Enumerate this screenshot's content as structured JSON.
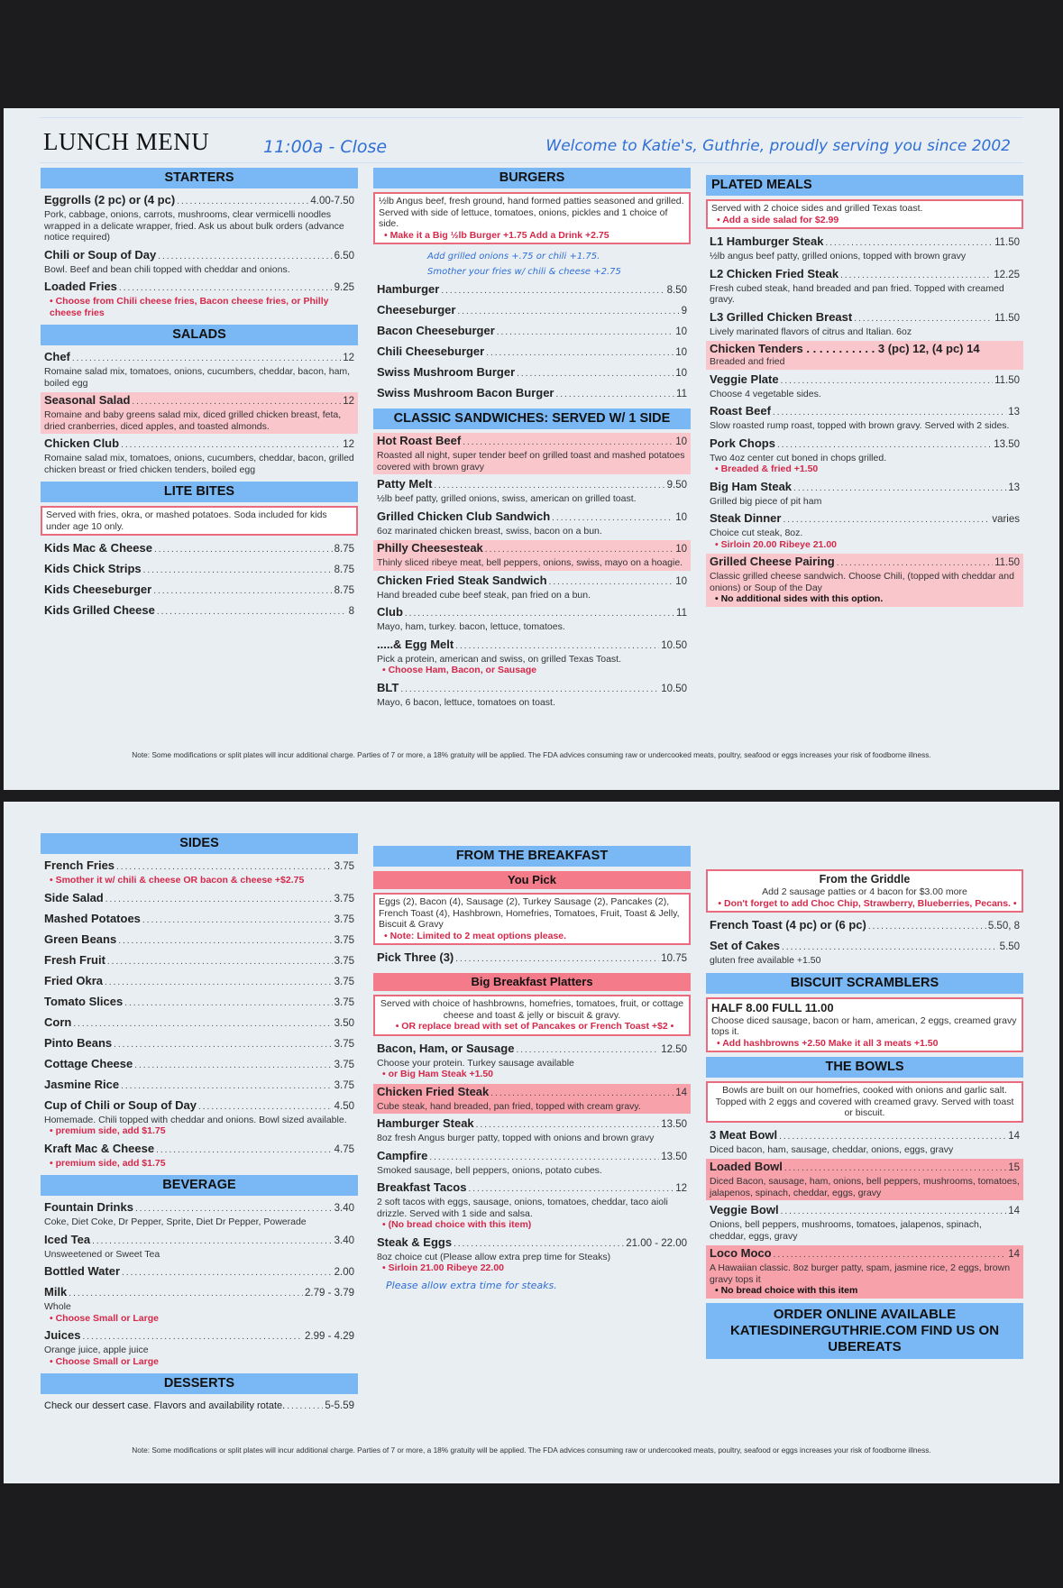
{
  "header": {
    "title": "LUNCH MENU",
    "hours": "11:00a - Close",
    "welcome": "Welcome to Katie's, Guthrie, proudly serving you since 2002"
  },
  "colors": {
    "header_blue": "#7ab8f5",
    "highlight_pink": "#f9c6cc",
    "highlight_rose": "#f7a1ab",
    "accent_red": "#d6284a",
    "script_blue": "#2f6fd6"
  },
  "footnote": "Note: Some modifications or split plates will incur additional charge.   Parties of 7 or more, a 18% gratuity will be applied. The FDA advices consuming raw or undercooked meats, poultry, seafood or eggs increases your risk of foodborne illness.",
  "pages": [
    {
      "columns": [
        [
          {
            "type": "header",
            "text": "STARTERS"
          },
          {
            "type": "item",
            "name": "Eggrolls (2 pc) or (4 pc)",
            "price": "4.00-7.50",
            "desc": "Pork, cabbage, onions, carrots, mushrooms, clear vermicelli noodles wrapped in a delicate wrapper, fried.  Ask us about bulk orders (advance notice required)"
          },
          {
            "type": "item",
            "name": "Chili or Soup of Day",
            "price": "6.50",
            "desc": "Bowl. Beef and bean chili topped with cheddar and onions."
          },
          {
            "type": "item",
            "name": "Loaded Fries",
            "price": "9.25",
            "notes": [
              "• Choose from Chili cheese fries, Bacon cheese fries, or Philly cheese fries"
            ]
          },
          {
            "type": "header",
            "text": "SALADS"
          },
          {
            "type": "item",
            "name": "Chef",
            "price": "12",
            "desc": "Romaine salad mix, tomatoes, onions, cucumbers, cheddar, bacon, ham, boiled egg"
          },
          {
            "type": "item",
            "name": "Seasonal Salad",
            "price": "12",
            "hl": "pink",
            "desc": "Romaine and baby greens salad mix, diced grilled chicken breast, feta, dried cranberries, diced apples, and toasted almonds."
          },
          {
            "type": "item",
            "name": "Chicken Club",
            "price": "12",
            "desc": "Romaine salad mix, tomatoes, onions, cucumbers, cheddar, bacon, grilled chicken breast or fried chicken tenders, boiled egg"
          },
          {
            "type": "header",
            "text": "LITE BITES"
          },
          {
            "type": "box",
            "text": "Served with fries, okra, or mashed potatoes. Soda included for kids under age 10 only."
          },
          {
            "type": "item",
            "name": "Kids Mac & Cheese",
            "price": "8.75"
          },
          {
            "type": "item",
            "name": "Kids Chick Strips",
            "price": "8.75"
          },
          {
            "type": "item",
            "name": "Kids Cheeseburger",
            "price": "8.75"
          },
          {
            "type": "item",
            "name": "Kids Grilled Cheese",
            "price": "8"
          }
        ],
        [
          {
            "type": "header",
            "text": "BURGERS"
          },
          {
            "type": "box",
            "text": "½lb Angus beef, fresh ground, hand formed patties seasoned and grilled. Served with side of lettuce, tomatoes, onions, pickles and 1 choice of side.",
            "notes": [
              "• Make it a Big ½lb Burger +1.75     Add a Drink +2.75"
            ]
          },
          {
            "type": "script",
            "lines": [
              "Add grilled onions +.75 or chili +1.75.",
              "Smother your fries w/ chili & cheese +2.75"
            ]
          },
          {
            "type": "item",
            "name": "Hamburger",
            "price": "8.50"
          },
          {
            "type": "item",
            "name": "Cheeseburger",
            "price": "9"
          },
          {
            "type": "item",
            "name": "Bacon Cheeseburger",
            "price": "10"
          },
          {
            "type": "item",
            "name": "Chili Cheeseburger",
            "price": "10"
          },
          {
            "type": "item",
            "name": "Swiss Mushroom Burger",
            "price": "10"
          },
          {
            "type": "item",
            "name": "Swiss Mushroom Bacon Burger",
            "price": "11"
          },
          {
            "type": "header",
            "text": "CLASSIC SANDWICHES: SERVED W/ 1 SIDE"
          },
          {
            "type": "item",
            "name": "Hot Roast Beef",
            "price": "10",
            "hl": "pink",
            "desc": "Roasted all night, super tender beef on grilled toast and mashed potatoes covered with brown gravy"
          },
          {
            "type": "item",
            "name": "Patty Melt",
            "price": "9.50",
            "desc": "½lb beef patty, grilled onions, swiss, american on grilled toast."
          },
          {
            "type": "item",
            "name": "Grilled Chicken Club Sandwich",
            "price": "10",
            "desc": "6oz marinated chicken breast, swiss, bacon on a bun."
          },
          {
            "type": "item",
            "name": "Philly Cheesesteak",
            "price": "10",
            "hl": "pink",
            "desc": "Thinly sliced ribeye meat, bell peppers, onions, swiss, mayo on a hoagie."
          },
          {
            "type": "item",
            "name": "Chicken Fried Steak Sandwich",
            "price": "10",
            "desc": "Hand breaded cube beef steak, pan fried on a bun."
          },
          {
            "type": "item",
            "name": "Club",
            "price": "11",
            "desc": "Mayo, ham, turkey. bacon, lettuce, tomatoes."
          },
          {
            "type": "item",
            "name": ".....& Egg Melt",
            "price": "10.50",
            "desc": "Pick a protein, american and swiss, on grilled Texas Toast.",
            "notes": [
              "• Choose Ham, Bacon, or Sausage"
            ]
          },
          {
            "type": "item",
            "name": "BLT",
            "price": "10.50",
            "desc": "Mayo, 6 bacon, lettuce, tomatoes on toast."
          }
        ],
        [
          {
            "type": "header",
            "text": "PLATED MEALS",
            "align": "left"
          },
          {
            "type": "box",
            "text": "Served with 2 choice sides and grilled Texas toast.",
            "notes": [
              "• Add a side salad for $2.99"
            ]
          },
          {
            "type": "item",
            "name": "L1 Hamburger Steak",
            "price": "11.50",
            "desc": "½lb angus beef patty, grilled onions, topped with brown gravy"
          },
          {
            "type": "item",
            "name": "L2 Chicken Fried Steak",
            "price": "12.25",
            "desc": "Fresh cubed steak, hand breaded and pan fried. Topped with creamed gravy."
          },
          {
            "type": "item",
            "name": "L3 Grilled Chicken Breast",
            "price": "11.50",
            "desc": "Lively marinated flavors of citrus and Italian. 6oz"
          },
          {
            "type": "item",
            "name": "Chicken Tenders . . . . . . . . . . . 3 (pc)  12,   (4 pc)  14",
            "hl": "pink",
            "nodots": true,
            "desc": "Breaded and fried"
          },
          {
            "type": "item",
            "name": "Veggie Plate",
            "price": "11.50",
            "desc": "Choose 4 vegetable sides."
          },
          {
            "type": "item",
            "name": "Roast Beef",
            "price": "13",
            "desc": "Slow roasted rump roast, topped with brown gravy. Served with 2 sides."
          },
          {
            "type": "item",
            "name": "Pork Chops",
            "price": "13.50",
            "desc": "Two 4oz center cut boned in chops grilled.",
            "notes": [
              "• Breaded & fried +1.50"
            ]
          },
          {
            "type": "item",
            "name": "Big Ham Steak",
            "price": "13",
            "desc": "Grilled big piece of pit ham"
          },
          {
            "type": "item",
            "name": "Steak Dinner",
            "price": "varies",
            "desc": "Choice cut steak, 8oz.",
            "notes": [
              "• Sirloin 20.00          Ribeye 21.00"
            ]
          },
          {
            "type": "item",
            "name": "Grilled Cheese Pairing",
            "price": "11.50",
            "hl": "pink",
            "desc": "Classic grilled cheese sandwich. Choose Chili, (topped with cheddar and onions) or Soup of the Day",
            "darknotes": [
              "• No additional sides with this option."
            ]
          }
        ]
      ]
    },
    {
      "columns": [
        [
          {
            "type": "header",
            "text": "SIDES"
          },
          {
            "type": "item",
            "name": "French Fries",
            "price": "3.75",
            "notes": [
              "• Smother it w/ chili & cheese OR bacon & cheese +$2.75"
            ]
          },
          {
            "type": "item",
            "name": "Side Salad",
            "price": "3.75"
          },
          {
            "type": "item",
            "name": "Mashed Potatoes",
            "price": "3.75"
          },
          {
            "type": "item",
            "name": "Green Beans",
            "price": "3.75"
          },
          {
            "type": "item",
            "name": "Fresh Fruit",
            "price": "3.75"
          },
          {
            "type": "item",
            "name": "Fried Okra",
            "price": "3.75"
          },
          {
            "type": "item",
            "name": "Tomato Slices",
            "price": "3.75"
          },
          {
            "type": "item",
            "name": "Corn",
            "price": "3.50"
          },
          {
            "type": "item",
            "name": "Pinto Beans",
            "price": "3.75"
          },
          {
            "type": "item",
            "name": "Cottage Cheese",
            "price": "3.75"
          },
          {
            "type": "item",
            "name": "Jasmine Rice",
            "price": "3.75"
          },
          {
            "type": "item",
            "name": "Cup of Chili or Soup of Day",
            "price": "4.50",
            "desc": "Homemade. Chili topped with cheddar and onions. Bowl sized available.",
            "notes": [
              "• premium side, add $1.75"
            ]
          },
          {
            "type": "item",
            "name": "Kraft Mac & Cheese",
            "price": "4.75",
            "notes": [
              "• premium side, add $1.75"
            ]
          },
          {
            "type": "header",
            "text": "BEVERAGE"
          },
          {
            "type": "item",
            "name": "Fountain Drinks",
            "price": "3.40",
            "desc": "Coke, Diet Coke, Dr Pepper, Sprite, Diet Dr Pepper, Powerade"
          },
          {
            "type": "item",
            "name": "Iced Tea",
            "price": "3.40",
            "desc": "Unsweetened or Sweet Tea"
          },
          {
            "type": "item",
            "name": "Bottled Water",
            "price": "2.00"
          },
          {
            "type": "item",
            "name": "Milk",
            "price": "2.79 - 3.79",
            "desc": "Whole",
            "notes": [
              "• Choose Small or Large"
            ]
          },
          {
            "type": "item",
            "name": "Juices",
            "price": "2.99 - 4.29",
            "desc": "Orange juice, apple juice",
            "notes": [
              "• Choose Small or Large"
            ]
          },
          {
            "type": "header",
            "text": "DESSERTS"
          },
          {
            "type": "item",
            "name": "Check our dessert case. Flavors and availability rotate.",
            "price": "5-5.59",
            "plain": true
          }
        ],
        [
          {
            "type": "header",
            "text": "FROM THE BREAKFAST"
          },
          {
            "type": "header",
            "text": "You Pick",
            "style": "pink"
          },
          {
            "type": "box",
            "text": "Eggs (2), Bacon (4), Sausage (2), Turkey Sausage (2), Pancakes (2), French Toast (4), Hashbrown, Homefries, Tomatoes, Fruit, Toast & Jelly, Biscuit & Gravy",
            "notes": [
              "• Note: Limited to 2 meat options please."
            ]
          },
          {
            "type": "item",
            "name": "Pick Three (3)",
            "price": "10.75"
          },
          {
            "type": "header",
            "text": "Big Breakfast Platters",
            "style": "pink"
          },
          {
            "type": "box",
            "center": true,
            "text": "Served with choice of hashbrowns, homefries, tomatoes, fruit, or cottage cheese and toast & jelly or biscuit & gravy.",
            "notes": [
              "• OR replace bread with set of Pancakes or French Toast +$2 •"
            ]
          },
          {
            "type": "item",
            "name": "Bacon, Ham, or Sausage",
            "price": "12.50",
            "desc": "Choose your protein. Turkey sausage available",
            "notes": [
              "• or Big Ham Steak +1.50"
            ]
          },
          {
            "type": "item",
            "name": "Chicken Fried Steak",
            "price": "14",
            "hl": "rose",
            "desc": "Cube steak, hand breaded, pan fried, topped with cream gravy."
          },
          {
            "type": "item",
            "name": "Hamburger Steak",
            "price": "13.50",
            "desc": "8oz fresh Angus burger patty, topped with onions and brown gravy"
          },
          {
            "type": "item",
            "name": "Campfire",
            "price": "13.50",
            "desc": "Smoked sausage, bell peppers, onions, potato cubes."
          },
          {
            "type": "item",
            "name": "Breakfast Tacos",
            "price": "12",
            "desc": "2 soft tacos with eggs, sausage, onions, tomatoes, cheddar, taco aioli drizzle. Served with 1 side and salsa.",
            "notes": [
              "•  (No bread choice with this item)"
            ]
          },
          {
            "type": "item",
            "name": "Steak & Eggs",
            "price": "21.00 - 22.00",
            "desc": "8oz choice cut (Please allow extra prep time for Steaks)",
            "notes": [
              "• Sirloin 21.00     Ribeye 22.00"
            ]
          },
          {
            "type": "script",
            "style": "l",
            "lines": [
              "Please allow extra time for steaks."
            ]
          }
        ],
        [
          {
            "type": "box",
            "center": true,
            "title": "From the Griddle",
            "text": "Add 2 sausage patties or 4 bacon for $3.00 more",
            "notes": [
              "• Don't forget to add Choc Chip, Strawberry, Blueberries, Pecans. •"
            ]
          },
          {
            "type": "item",
            "name": "French Toast    (4 pc) or (6 pc)",
            "price": "5.50, 8"
          },
          {
            "type": "item",
            "name": "Set of Cakes",
            "price": "5.50",
            "desc": "gluten free available +1.50"
          },
          {
            "type": "header",
            "text": "BISCUIT SCRAMBLERS"
          },
          {
            "type": "box",
            "big": "HALF 8.00     FULL 11.00",
            "text": "Choose diced sausage, bacon or ham, american, 2 eggs, creamed gravy tops it.",
            "notes": [
              "• Add hashbrowns +2.50   Make it all 3 meats  +1.50"
            ]
          },
          {
            "type": "header",
            "text": "THE BOWLS"
          },
          {
            "type": "box",
            "center": true,
            "text": "Bowls are built on our homefries, cooked with onions and garlic salt. Topped with 2 eggs and covered with creamed gravy. Served with toast or biscuit."
          },
          {
            "type": "item",
            "name": "3 Meat Bowl",
            "price": "14",
            "desc": "Diced bacon, ham, sausage, cheddar, onions, eggs, gravy"
          },
          {
            "type": "item",
            "name": "Loaded Bowl",
            "price": "15",
            "hl": "rose",
            "desc": "Diced Bacon, sausage, ham, onions, bell peppers, mushrooms, tomatoes, jalapenos, spinach, cheddar, eggs, gravy"
          },
          {
            "type": "item",
            "name": "Veggie Bowl",
            "price": "14",
            "desc": "Onions, bell peppers, mushrooms, tomatoes, jalapenos, spinach, cheddar, eggs, gravy"
          },
          {
            "type": "item",
            "name": "Loco Moco",
            "price": "14",
            "hl": "rose",
            "desc": "A Hawaiian classic. 8oz burger patty, spam, jasmine rice, 2 eggs, brown gravy tops it",
            "darknotes": [
              "• No bread choice with this item"
            ]
          },
          {
            "type": "header",
            "text": "ORDER ONLINE AVAILABLE KATIESDINERGUTHRIE.COM FIND US ON UBEREATS",
            "style": "big"
          }
        ]
      ]
    }
  ]
}
